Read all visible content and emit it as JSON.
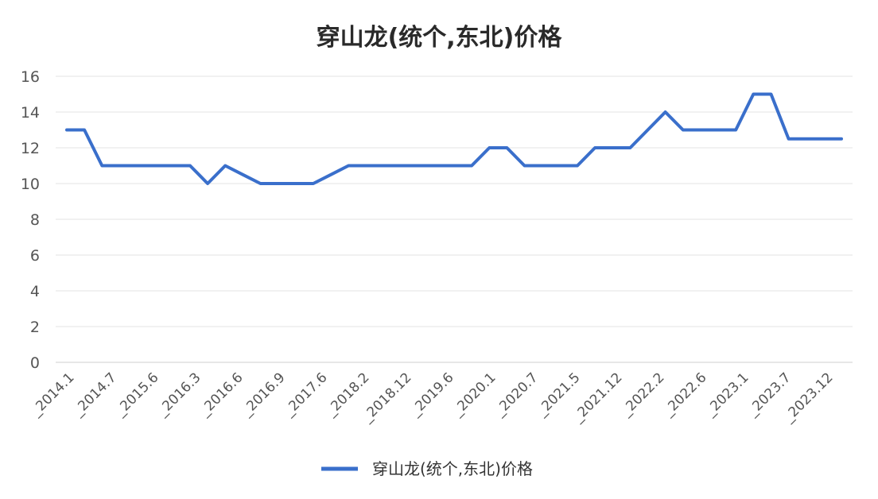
{
  "chart_data": {
    "type": "line",
    "title": "穿山龙(统个,东北)价格",
    "xlabel": "",
    "ylabel": "",
    "ylim": [
      0,
      16
    ],
    "yticks": [
      0,
      2,
      4,
      6,
      8,
      10,
      12,
      14,
      16
    ],
    "grid": true,
    "legend_position": "bottom",
    "x_tick_labels": [
      "2014.1",
      "2014.7",
      "2015.6",
      "2016.3",
      "2016.6",
      "2016.9",
      "2017.6",
      "2018.2",
      "2018.12",
      "2019.6",
      "2020.1",
      "2020.7",
      "2021.5",
      "2021.12",
      "2022.2",
      "2022.6",
      "2023.1",
      "2023.7",
      "2023.12"
    ],
    "series": [
      {
        "name": "穿山龙(统个,东北)价格",
        "color": "#3a6fcb",
        "values": [
          13,
          13,
          11,
          11,
          11,
          11,
          11,
          11,
          10,
          11,
          10.5,
          10,
          10,
          10,
          10,
          10.5,
          11,
          11,
          11,
          11,
          11,
          11,
          11,
          11,
          12,
          12,
          11,
          11,
          11,
          11,
          12,
          12,
          12,
          13,
          14,
          13,
          13,
          13,
          13,
          15,
          15,
          12.5,
          12.5,
          12.5,
          12.5
        ]
      }
    ]
  }
}
